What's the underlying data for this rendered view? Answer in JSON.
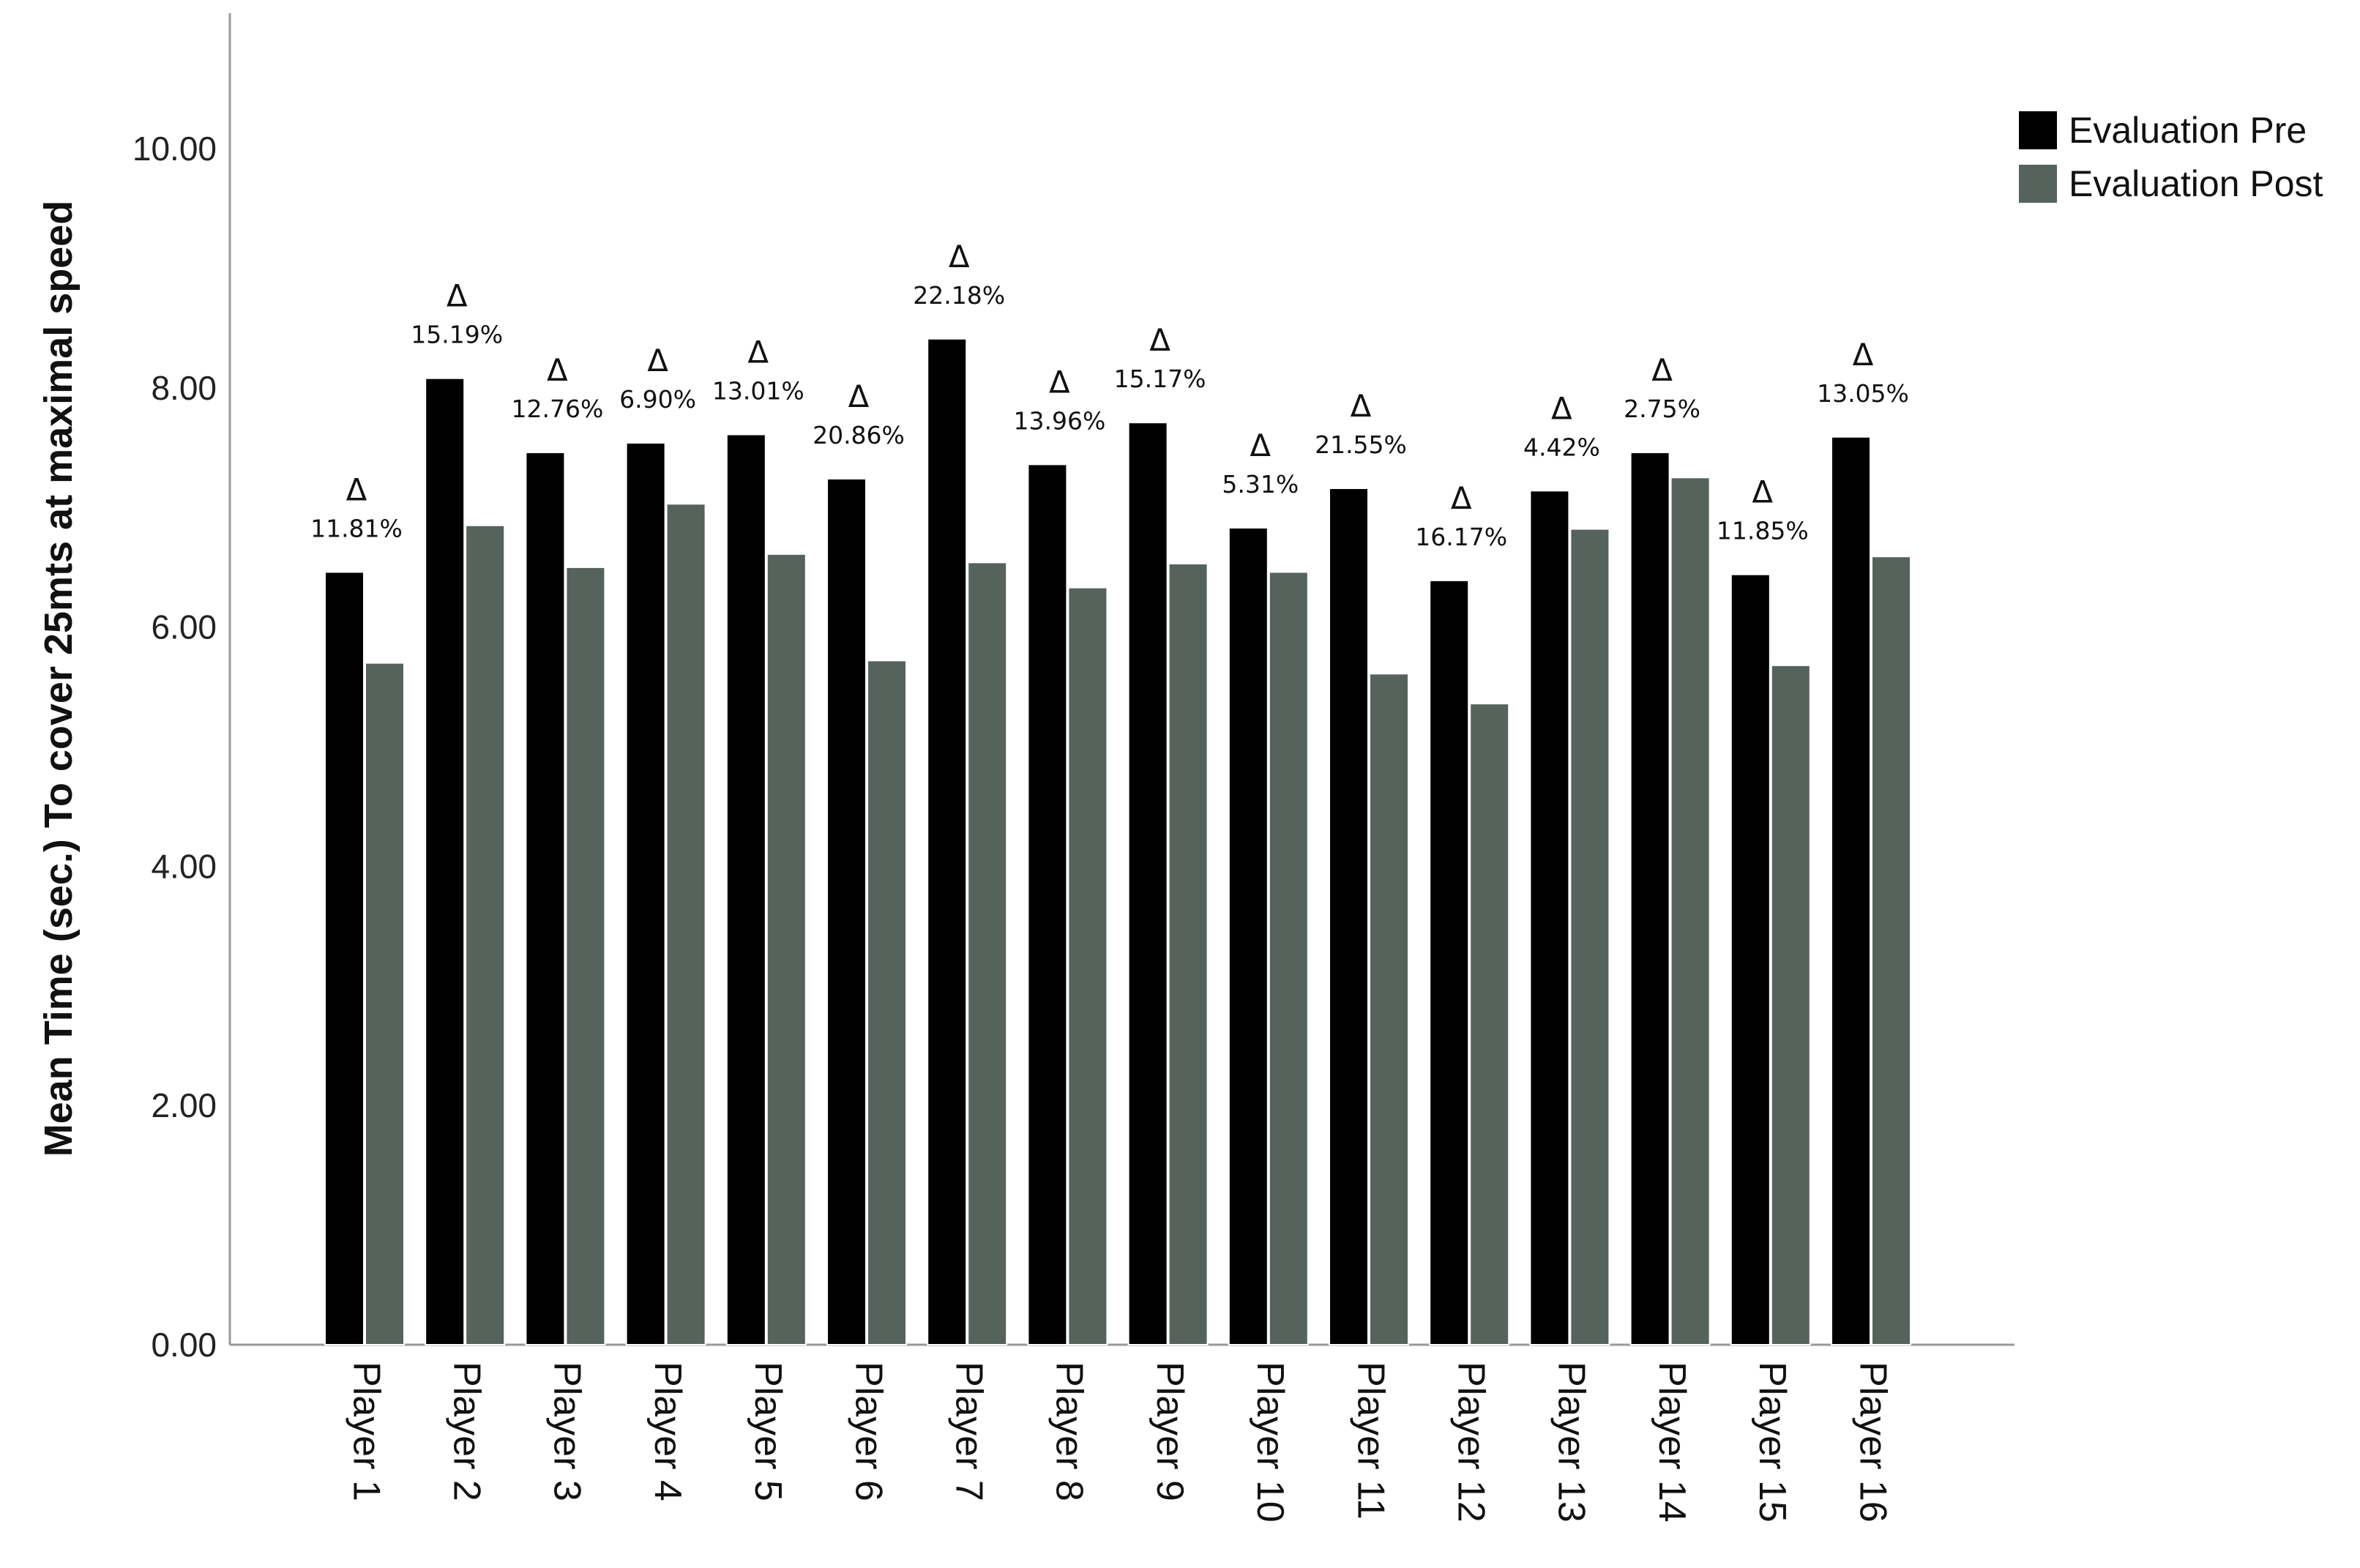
{
  "chart_data": {
    "type": "bar",
    "ylabel": "Mean Time (sec.) To cover 25mts at maximal speed",
    "xlabel": "",
    "ylim": [
      0,
      11.3
    ],
    "yticks": [
      "0.00",
      "2.00",
      "4.00",
      "6.00",
      "8.00",
      "10.00"
    ],
    "grid": false,
    "legend_position": "top-right",
    "categories": [
      "Player 1",
      "Player 2",
      "Player 3",
      "Player 4",
      "Player 5",
      "Player 6",
      "Player 7",
      "Player 8",
      "Player 9",
      "Player 10",
      "Player 11",
      "Player 12",
      "Player 13",
      "Player 14",
      "Player 15",
      "Player 16"
    ],
    "series": [
      {
        "name": "Evaluation Pre",
        "color": "#000000",
        "values": [
          6.46,
          8.08,
          7.46,
          7.54,
          7.61,
          7.24,
          8.41,
          7.36,
          7.71,
          6.83,
          7.16,
          6.39,
          7.14,
          7.46,
          6.44,
          7.59
        ]
      },
      {
        "name": "Evaluation Post",
        "color": "#56635c",
        "values": [
          5.7,
          6.85,
          6.5,
          7.03,
          6.61,
          5.72,
          6.54,
          6.33,
          6.53,
          6.46,
          5.61,
          5.36,
          6.82,
          7.25,
          5.68,
          6.59
        ]
      }
    ],
    "annotations": {
      "symbol": "Δ",
      "values": [
        "11.81%",
        "15.19%",
        "12.76%",
        "6.90%",
        "13.01%",
        "20.86%",
        "22.18%",
        "13.96%",
        "15.17%",
        "5.31%",
        "21.55%",
        "16.17%",
        "4.42%",
        "2.75%",
        "11.85%",
        "13.05%"
      ]
    }
  }
}
